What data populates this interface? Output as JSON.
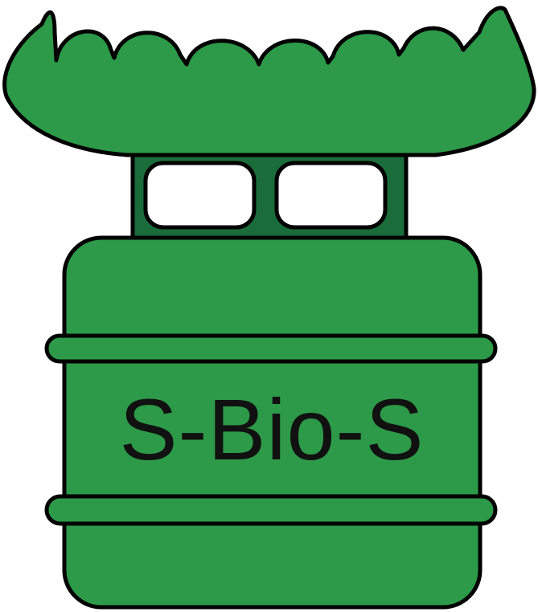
{
  "logo": {
    "label": "S-Bio-S",
    "colors": {
      "body": "#2c9a48",
      "connector": "#1a6d3a",
      "outline": "#000000",
      "window": "#ffffff",
      "text": "#111111"
    }
  }
}
